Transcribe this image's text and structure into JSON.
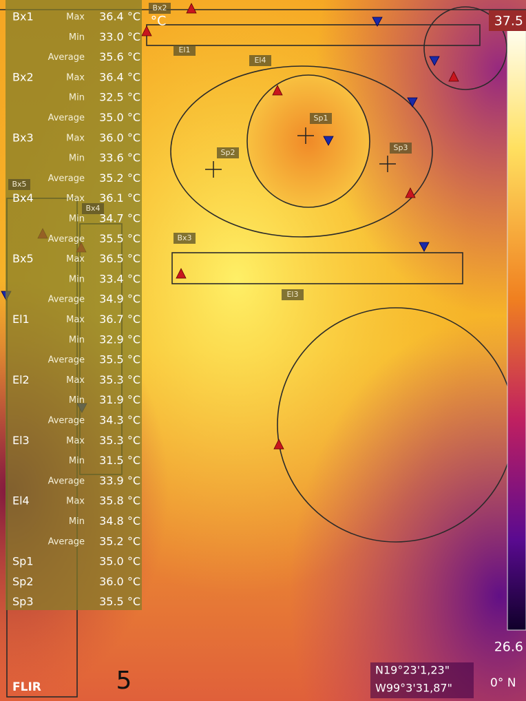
{
  "measurements": [
    {
      "name": "Bx1",
      "rows": [
        {
          "label": "Max",
          "value": "36.4 °C"
        },
        {
          "label": "Min",
          "value": "33.0 °C"
        },
        {
          "label": "Average",
          "value": "35.6 °C"
        }
      ]
    },
    {
      "name": "Bx2",
      "rows": [
        {
          "label": "Max",
          "value": "36.4 °C"
        },
        {
          "label": "Min",
          "value": "32.5 °C"
        },
        {
          "label": "Average",
          "value": "35.0 °C"
        }
      ]
    },
    {
      "name": "Bx3",
      "rows": [
        {
          "label": "Max",
          "value": "36.0 °C"
        },
        {
          "label": "Min",
          "value": "33.6 °C"
        },
        {
          "label": "Average",
          "value": "35.2 °C"
        }
      ]
    },
    {
      "name": "Bx4",
      "rows": [
        {
          "label": "Max",
          "value": "36.1 °C"
        },
        {
          "label": "Min",
          "value": "34.7 °C"
        },
        {
          "label": "Average",
          "value": "35.5 °C"
        }
      ]
    },
    {
      "name": "Bx5",
      "rows": [
        {
          "label": "Max",
          "value": "36.5 °C"
        },
        {
          "label": "Min",
          "value": "33.4 °C"
        },
        {
          "label": "Average",
          "value": "34.9 °C"
        }
      ]
    },
    {
      "name": "El1",
      "rows": [
        {
          "label": "Max",
          "value": "36.7 °C"
        },
        {
          "label": "Min",
          "value": "32.9 °C"
        },
        {
          "label": "Average",
          "value": "35.5 °C"
        }
      ]
    },
    {
      "name": "El2",
      "rows": [
        {
          "label": "Max",
          "value": "35.3 °C"
        },
        {
          "label": "Min",
          "value": "31.9 °C"
        },
        {
          "label": "Average",
          "value": "34.3 °C"
        }
      ]
    },
    {
      "name": "El3",
      "rows": [
        {
          "label": "Max",
          "value": "35.3 °C"
        },
        {
          "label": "Min",
          "value": "31.5 °C"
        },
        {
          "label": "Average",
          "value": "33.9 °C"
        }
      ]
    },
    {
      "name": "El4",
      "rows": [
        {
          "label": "Max",
          "value": "35.8 °C"
        },
        {
          "label": "Min",
          "value": "34.8 °C"
        },
        {
          "label": "Average",
          "value": "35.2 °C"
        }
      ]
    },
    {
      "name": "Sp1",
      "rows": [
        {
          "value": "35.0 °C"
        }
      ]
    },
    {
      "name": "Sp2",
      "rows": [
        {
          "value": "36.0 °C"
        }
      ]
    },
    {
      "name": "Sp3",
      "rows": [
        {
          "value": "35.5 °C"
        }
      ]
    }
  ],
  "scale": {
    "unit": "°C",
    "max": "37.5",
    "min": "26.6"
  },
  "overlay_labels": [
    "Bx2",
    "El1",
    "El4",
    "Sp1",
    "Sp2",
    "Sp3",
    "Bx3",
    "El3",
    "Bx5",
    "Bx4"
  ],
  "gps": [
    "N19°23'1,23\"",
    "W99°3'31,87\""
  ],
  "compass": "0° N",
  "image_number": "5",
  "logo": "FLIR"
}
